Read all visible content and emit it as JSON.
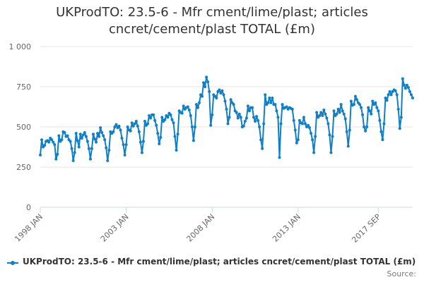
{
  "chart_data": {
    "type": "line",
    "title": "UKProdTO: 23.5-6 - Mfr cment/lime/plast; articles cncret/cement/plast TOTAL (£m)",
    "title_lines": [
      "UKProdTO: 23.5-6 - Mfr cment/lime/plast; articles",
      "cncret/cement/plast TOTAL (£m)"
    ],
    "xlabel": "",
    "ylabel": "",
    "x_tick_labels": [
      "1998 JAN",
      "2003 JAN",
      "2008 JAN",
      "2013 JAN",
      "2017 SEP"
    ],
    "x_tick_indices": [
      0,
      60,
      120,
      180,
      236
    ],
    "y_tick_labels": [
      "0",
      "250",
      "500",
      "750",
      "1 000"
    ],
    "y_ticks": [
      0,
      250,
      500,
      750,
      1000
    ],
    "ylim": [
      0,
      1000
    ],
    "grid": true,
    "legend_position": "bottom",
    "series": [
      {
        "name": "UKProdTO: 23.5-6 - Mfr cment/lime/plast; articles cncret/cement/plast TOTAL (£m)",
        "color": "#0f7fc7",
        "start": "1998-01",
        "frequency": "monthly",
        "values": [
          325,
          420,
          375,
          385,
          410,
          415,
          405,
          430,
          420,
          405,
          390,
          300,
          330,
          445,
          410,
          420,
          470,
          465,
          440,
          445,
          420,
          410,
          365,
          290,
          340,
          460,
          415,
          375,
          455,
          430,
          450,
          465,
          440,
          410,
          365,
          300,
          365,
          455,
          425,
          405,
          460,
          440,
          495,
          465,
          445,
          420,
          370,
          290,
          355,
          470,
          460,
          470,
          500,
          515,
          495,
          505,
          480,
          430,
          390,
          325,
          390,
          500,
          480,
          475,
          525,
          505,
          520,
          535,
          505,
          470,
          405,
          340,
          410,
          535,
          510,
          520,
          570,
          555,
          575,
          575,
          540,
          510,
          460,
          395,
          435,
          560,
          535,
          545,
          570,
          560,
          585,
          575,
          545,
          525,
          440,
          355,
          455,
          600,
          590,
          585,
          630,
          610,
          620,
          625,
          605,
          570,
          500,
          415,
          500,
          640,
          620,
          650,
          700,
          690,
          775,
          750,
          810,
          780,
          720,
          510,
          575,
          700,
          690,
          680,
          720,
          730,
          710,
          725,
          700,
          660,
          610,
          520,
          560,
          670,
          650,
          640,
          600,
          590,
          555,
          580,
          560,
          500,
          505,
          535,
          555,
          630,
          600,
          620,
          620,
          560,
          535,
          565,
          540,
          500,
          420,
          365,
          520,
          700,
          640,
          650,
          680,
          650,
          680,
          640,
          640,
          600,
          560,
          310,
          520,
          640,
          615,
          620,
          625,
          610,
          620,
          615,
          610,
          540,
          480,
          400,
          420,
          540,
          525,
          520,
          560,
          520,
          500,
          510,
          495,
          460,
          420,
          340,
          440,
          590,
          560,
          570,
          590,
          570,
          605,
          580,
          555,
          520,
          450,
          340,
          440,
          600,
          570,
          580,
          610,
          590,
          640,
          600,
          580,
          550,
          470,
          380,
          480,
          660,
          635,
          640,
          690,
          670,
          650,
          640,
          620,
          575,
          500,
          475,
          500,
          620,
          600,
          580,
          660,
          640,
          650,
          620,
          600,
          540,
          470,
          420,
          520,
          680,
          665,
          700,
          720,
          700,
          720,
          730,
          725,
          700,
          610,
          490,
          560,
          800,
          760,
          740,
          760,
          745,
          720,
          700,
          680
        ]
      }
    ]
  },
  "legend": {
    "label": "UKProdTO: 23.5-6 - Mfr cment/lime/plast; articles cncret/cement/plast TOTAL (£m)"
  },
  "source": "Source:"
}
